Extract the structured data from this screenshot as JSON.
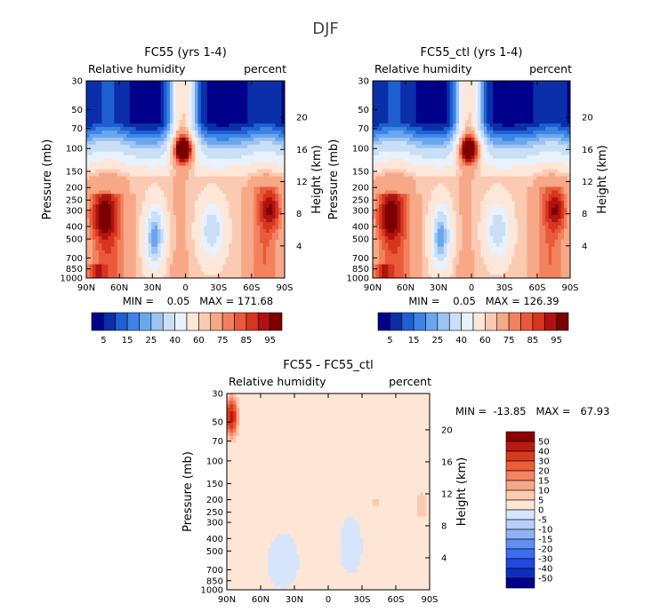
{
  "page_title": "DJF",
  "colors": {
    "rh_levels": [
      "#00008b",
      "#0a2fa8",
      "#1e5fd1",
      "#3d84e6",
      "#6aa6ee",
      "#9cc3f2",
      "#c9dff7",
      "#e8f1fc",
      "#fde7d9",
      "#fbcab2",
      "#f7a887",
      "#f2825f",
      "#ea5a3a",
      "#d6361d",
      "#b01212",
      "#7c0000"
    ],
    "diff_levels": [
      "#00008b",
      "#0e2dbf",
      "#1f49e0",
      "#3a6ef0",
      "#5f8ff5",
      "#8fb2f7",
      "#b7cff9",
      "#d6e5fb",
      "#fde6d6",
      "#fbcbb1",
      "#f7a986",
      "#f3845e",
      "#ec5d3a",
      "#d83a1f",
      "#b81a10",
      "#8b0000"
    ]
  },
  "chart_data": [
    {
      "type": "heatmap",
      "title": "FC55 (yrs 1-4)",
      "field_label": "Relative humidity",
      "units_label": "percent",
      "ylabel": "Pressure (mb)",
      "y2label": "Height (km)",
      "x_ticks": [
        "90N",
        "60N",
        "30N",
        "0",
        "30S",
        "60S",
        "90S"
      ],
      "y_ticks": [
        "30",
        "50",
        "70",
        "100",
        "150",
        "200",
        "250",
        "300",
        "400",
        "500",
        "700",
        "850",
        "1000"
      ],
      "y2_ticks": [
        "20",
        "16",
        "12",
        "8",
        "4"
      ],
      "ylim": [
        1000,
        30
      ],
      "min_text": "MIN =    0.05   MAX = 171.68",
      "colorbar_labels": [
        "5",
        "15",
        "25",
        "40",
        "60",
        "75",
        "85",
        "95"
      ]
    },
    {
      "type": "heatmap",
      "title": "FC55_ctl (yrs 1-4)",
      "field_label": "Relative humidity",
      "units_label": "percent",
      "ylabel": "Pressure (mb)",
      "y2label": "Height (km)",
      "x_ticks": [
        "90N",
        "60N",
        "30N",
        "0",
        "30S",
        "60S",
        "90S"
      ],
      "y_ticks": [
        "30",
        "50",
        "70",
        "100",
        "150",
        "200",
        "250",
        "300",
        "400",
        "500",
        "700",
        "850",
        "1000"
      ],
      "y2_ticks": [
        "20",
        "16",
        "12",
        "8",
        "4"
      ],
      "ylim": [
        1000,
        30
      ],
      "min_text": "MIN =    0.05   MAX = 126.39",
      "colorbar_labels": [
        "5",
        "15",
        "25",
        "40",
        "60",
        "75",
        "85",
        "95"
      ]
    },
    {
      "type": "heatmap",
      "title": "FC55 - FC55_ctl",
      "field_label": "Relative humidity",
      "units_label": "percent",
      "ylabel": "Pressure (mb)",
      "y2label": "Height (km)",
      "x_ticks": [
        "90N",
        "60N",
        "30N",
        "0",
        "30S",
        "60S",
        "90S"
      ],
      "y_ticks": [
        "30",
        "50",
        "70",
        "100",
        "150",
        "200",
        "250",
        "300",
        "400",
        "500",
        "700",
        "850",
        "1000"
      ],
      "y2_ticks": [
        "20",
        "16",
        "12",
        "8",
        "4"
      ],
      "ylim": [
        1000,
        30
      ],
      "min_text": "MIN =  -13.85   MAX =   67.93",
      "colorbar_labels": [
        "50",
        "40",
        "30",
        "20",
        "15",
        "10",
        "5",
        "0",
        "-5",
        "-10",
        "-15",
        "-20",
        "-30",
        "-40",
        "-50"
      ]
    }
  ]
}
